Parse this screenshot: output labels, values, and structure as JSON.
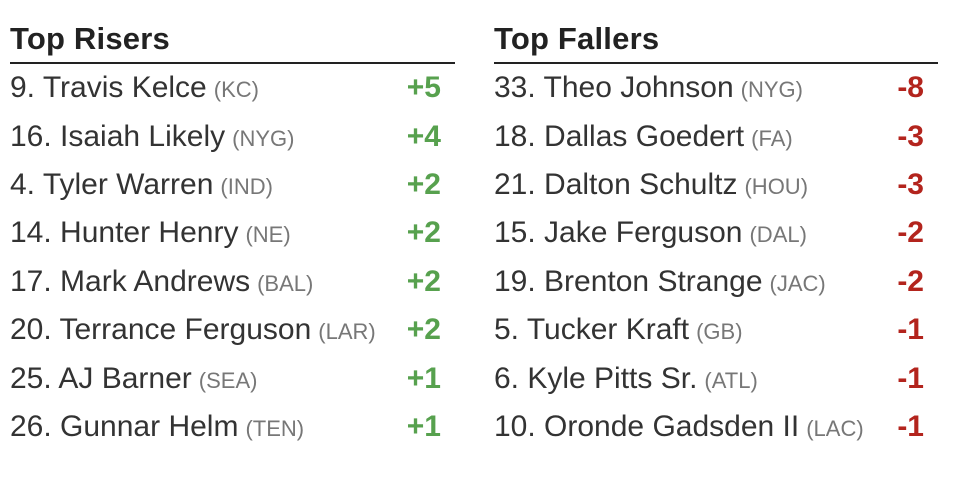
{
  "colors": {
    "background": "#ffffff",
    "header_text": "#222222",
    "rule": "#222222",
    "player_text": "#333333",
    "team_text": "#777777",
    "positive": "#57a14e",
    "negative": "#b3241d"
  },
  "columns": [
    {
      "id": "risers",
      "title": "Top Risers",
      "trend": "positive",
      "rows": [
        {
          "label": "9. Travis Kelce",
          "team": "(KC)",
          "change": "+5"
        },
        {
          "label": "16. Isaiah Likely",
          "team": "(NYG)",
          "change": "+4"
        },
        {
          "label": "4. Tyler Warren",
          "team": "(IND)",
          "change": "+2"
        },
        {
          "label": "14. Hunter Henry",
          "team": "(NE)",
          "change": "+2"
        },
        {
          "label": "17. Mark Andrews",
          "team": "(BAL)",
          "change": "+2"
        },
        {
          "label": "20. Terrance Ferguson",
          "team": "(LAR)",
          "change": "+2"
        },
        {
          "label": "25. AJ Barner",
          "team": "(SEA)",
          "change": "+1"
        },
        {
          "label": "26. Gunnar Helm",
          "team": "(TEN)",
          "change": "+1"
        }
      ]
    },
    {
      "id": "fallers",
      "title": "Top Fallers",
      "trend": "negative",
      "rows": [
        {
          "label": "33. Theo Johnson",
          "team": "(NYG)",
          "change": "-8"
        },
        {
          "label": "18. Dallas Goedert",
          "team": "(FA)",
          "change": "-3"
        },
        {
          "label": "21. Dalton Schultz",
          "team": "(HOU)",
          "change": "-3"
        },
        {
          "label": "15. Jake Ferguson",
          "team": "(DAL)",
          "change": "-2"
        },
        {
          "label": "19. Brenton Strange",
          "team": "(JAC)",
          "change": "-2"
        },
        {
          "label": "5. Tucker Kraft",
          "team": "(GB)",
          "change": "-1"
        },
        {
          "label": "6. Kyle Pitts Sr.",
          "team": "(ATL)",
          "change": "-1"
        },
        {
          "label": "10. Oronde Gadsden II",
          "team": "(LAC)",
          "change": "-1"
        }
      ]
    }
  ]
}
